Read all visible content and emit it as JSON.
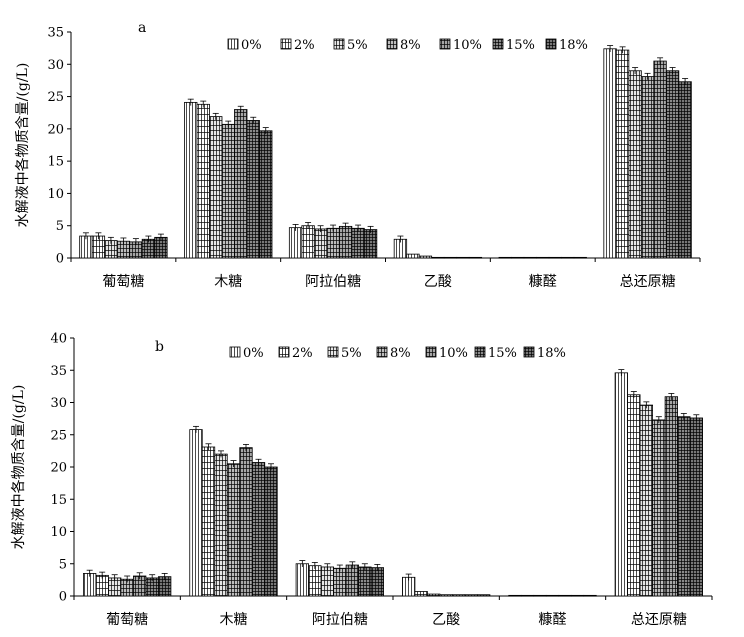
{
  "chart_data": [
    {
      "type": "bar",
      "title": "a",
      "ylabel": "水解液中各物质含量/(g/L)",
      "xlabel": "",
      "ylim": [
        0,
        35
      ],
      "yticks": [
        0,
        5,
        10,
        15,
        20,
        25,
        30,
        35
      ],
      "grid": false,
      "legend_position": "top",
      "categories": [
        "葡萄糖",
        "木糖",
        "阿拉伯糖",
        "乙酸",
        "糠醛",
        "总还原糖"
      ],
      "series": [
        {
          "name": "0%",
          "values": [
            3.4,
            24.1,
            4.7,
            2.9,
            0.1,
            32.4
          ]
        },
        {
          "name": "2%",
          "values": [
            3.4,
            23.8,
            5.0,
            0.6,
            0.1,
            32.2
          ]
        },
        {
          "name": "5%",
          "values": [
            2.7,
            21.9,
            4.5,
            0.3,
            0.1,
            29.0
          ]
        },
        {
          "name": "8%",
          "values": [
            2.6,
            20.7,
            4.6,
            0.1,
            0.1,
            28.1
          ]
        },
        {
          "name": "10%",
          "values": [
            2.5,
            23.0,
            4.9,
            0.1,
            0.1,
            30.5
          ]
        },
        {
          "name": "15%",
          "values": [
            2.9,
            21.3,
            4.6,
            0.1,
            0.1,
            29.0
          ]
        },
        {
          "name": "18%",
          "values": [
            3.2,
            19.7,
            4.4,
            0.1,
            0.1,
            27.3
          ]
        }
      ]
    },
    {
      "type": "bar",
      "title": "b",
      "ylabel": "水解液中各物质含量/(g/L)",
      "xlabel": "",
      "ylim": [
        0,
        40
      ],
      "yticks": [
        0,
        5,
        10,
        15,
        20,
        25,
        30,
        35,
        40
      ],
      "grid": false,
      "legend_position": "top",
      "categories": [
        "葡萄糖",
        "木糖",
        "阿拉伯糖",
        "乙酸",
        "糠醛",
        "总还原糖"
      ],
      "series": [
        {
          "name": "0%",
          "values": [
            3.5,
            25.8,
            5.0,
            2.9,
            0.1,
            34.6
          ]
        },
        {
          "name": "2%",
          "values": [
            3.2,
            23.1,
            4.7,
            0.7,
            0.1,
            31.2
          ]
        },
        {
          "name": "5%",
          "values": [
            2.8,
            22.0,
            4.5,
            0.3,
            0.1,
            29.6
          ]
        },
        {
          "name": "8%",
          "values": [
            2.6,
            20.5,
            4.3,
            0.2,
            0.1,
            27.3
          ]
        },
        {
          "name": "10%",
          "values": [
            3.1,
            23.0,
            4.8,
            0.2,
            0.1,
            30.9
          ]
        },
        {
          "name": "15%",
          "values": [
            2.8,
            20.7,
            4.5,
            0.2,
            0.1,
            27.8
          ]
        },
        {
          "name": "18%",
          "values": [
            3.0,
            20.0,
            4.4,
            0.2,
            0.1,
            27.6
          ]
        }
      ]
    }
  ]
}
